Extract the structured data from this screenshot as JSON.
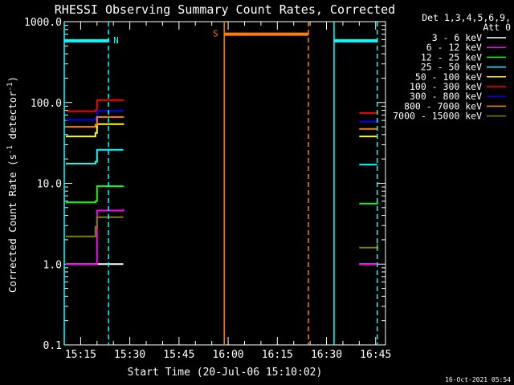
{
  "chart_data": {
    "type": "line",
    "title": "RHESSI Observing Summary Count Rates, Corrected",
    "xlabel": "Start Time (20-Jul-06 15:10:02)",
    "ylabel_main": "Corrected Count Rate (s",
    "ylabel_sup1": "-1",
    "ylabel_mid": " detector",
    "ylabel_sup2": "-1",
    "ylabel_end": ")",
    "yscale": "log",
    "ylim": [
      0.1,
      1000
    ],
    "xlim_minutes": [
      0,
      98
    ],
    "y_ticks": [
      {
        "value": 0.1,
        "label": "0.1"
      },
      {
        "value": 1,
        "label": "1.0"
      },
      {
        "value": 10,
        "label": "10.0"
      },
      {
        "value": 100,
        "label": "100.0"
      },
      {
        "value": 1000,
        "label": "1000.0"
      }
    ],
    "x_ticks": [
      {
        "value": 5,
        "label": "15:15"
      },
      {
        "value": 20,
        "label": "15:30"
      },
      {
        "value": 35,
        "label": "15:45"
      },
      {
        "value": 50,
        "label": "16:00"
      },
      {
        "value": 65,
        "label": "16:15"
      },
      {
        "value": 80,
        "label": "16:30"
      },
      {
        "value": 95,
        "label": "16:45"
      }
    ],
    "legend_title_1": "Det 1,3,4,5,6,9,",
    "legend_title_2": "Att 0",
    "legend_placement": "right",
    "series": [
      {
        "name": "3 - 6 keV",
        "color": "#ffffff",
        "segments": [
          [
            [
              0.5,
              1.0
            ],
            [
              9.5,
              1.0
            ],
            [
              17,
              1.0
            ],
            [
              18,
              1.0
            ]
          ],
          [
            [
              90,
              1.0
            ],
            [
              95.5,
              1.0
            ]
          ]
        ]
      },
      {
        "name": "6 - 12 keV",
        "color": "#ff00ff",
        "segments": [
          [
            [
              0.5,
              1.0
            ],
            [
              9.5,
              1.0
            ],
            [
              10,
              4.6
            ],
            [
              18,
              4.8
            ]
          ],
          [
            [
              90,
              1.0
            ],
            [
              95.5,
              1.0
            ]
          ]
        ]
      },
      {
        "name": "12 - 25 keV",
        "color": "#00ff00",
        "segments": [
          [
            [
              0.5,
              5.8
            ],
            [
              9.5,
              6.0
            ],
            [
              10,
              9.2
            ],
            [
              18,
              9.3
            ]
          ],
          [
            [
              90,
              5.6
            ],
            [
              95.5,
              5.5
            ]
          ]
        ]
      },
      {
        "name": "25 - 50 keV",
        "color": "#00ffff",
        "segments": [
          [
            [
              0.5,
              17.5
            ],
            [
              9.5,
              18.5
            ],
            [
              10,
              26
            ],
            [
              18,
              26
            ]
          ],
          [
            [
              90,
              17
            ],
            [
              95.5,
              17
            ]
          ]
        ]
      },
      {
        "name": "50 - 100 keV",
        "color": "#ffff00",
        "segments": [
          [
            [
              0.5,
              38
            ],
            [
              9.5,
              42
            ],
            [
              10,
              54
            ],
            [
              18,
              55
            ]
          ],
          [
            [
              90,
              38
            ],
            [
              95.5,
              38
            ]
          ]
        ]
      },
      {
        "name": "100 - 300 keV",
        "color": "#ff0000",
        "segments": [
          [
            [
              0.5,
              78
            ],
            [
              9.5,
              80
            ],
            [
              10,
              107
            ],
            [
              18,
              108
            ]
          ],
          [
            [
              90,
              74
            ],
            [
              95.5,
              73
            ]
          ]
        ]
      },
      {
        "name": "300 - 800 keV",
        "color": "#0000ff",
        "segments": [
          [
            [
              0.5,
              61
            ],
            [
              9.5,
              64
            ],
            [
              10,
              79
            ],
            [
              18,
              79
            ]
          ],
          [
            [
              90,
              58
            ],
            [
              95.5,
              57
            ]
          ]
        ]
      },
      {
        "name": "800 - 7000 keV",
        "color": "#ff8000",
        "segments": [
          [
            [
              0.5,
              50
            ],
            [
              9.5,
              53
            ],
            [
              10,
              66
            ],
            [
              18,
              67
            ]
          ],
          [
            [
              90,
              47
            ],
            [
              95.5,
              47
            ]
          ]
        ]
      },
      {
        "name": "7000 - 15000 keV",
        "color": "#808000",
        "segments": [
          [
            [
              0.5,
              2.2
            ],
            [
              9.5,
              2.9
            ],
            [
              10,
              3.8
            ],
            [
              18,
              3.8
            ]
          ],
          [
            [
              90,
              1.6
            ],
            [
              95.5,
              1.8
            ]
          ]
        ]
      }
    ],
    "annotations": [
      {
        "type": "vline",
        "x": 0,
        "color": "#00ffff",
        "style": "solid"
      },
      {
        "type": "vline",
        "x": 13.5,
        "color": "#00ffff",
        "style": "dashed"
      },
      {
        "type": "hbar",
        "x0": 0,
        "x1": 13.5,
        "y": 580,
        "color": "#00ffff",
        "label": "N"
      },
      {
        "type": "vline",
        "x": 48.8,
        "color": "#ff8000",
        "style": "solid"
      },
      {
        "type": "vline",
        "x": 74.5,
        "color": "#ff8000",
        "style": "dashed"
      },
      {
        "type": "hbar",
        "x0": 48.8,
        "x1": 74.5,
        "y": 700,
        "color": "#ff8000",
        "label": "S"
      },
      {
        "type": "vline",
        "x": 82.3,
        "color": "#00ffff",
        "style": "solid"
      },
      {
        "type": "vline",
        "x": 95.5,
        "color": "#00ffff",
        "style": "dashed"
      },
      {
        "type": "hbar",
        "x0": 82.3,
        "x1": 95.5,
        "y": 580,
        "color": "#00ffff",
        "label": ""
      }
    ],
    "grid": false
  },
  "footer": {
    "timestamp": "16-Oct-2021 05:54"
  }
}
